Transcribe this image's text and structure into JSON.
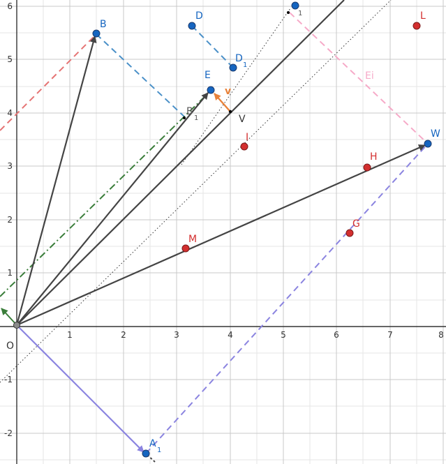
{
  "axes": {
    "x_ticks": [
      1,
      2,
      3,
      4,
      5,
      6,
      7,
      8
    ],
    "y_ticks": [
      6,
      5,
      4,
      3,
      2,
      1,
      -1,
      -2
    ],
    "origin_label": "O"
  },
  "colors": {
    "grid_major": "#c8c8c8",
    "grid_minor": "#e6e6e6",
    "axis": "#333333",
    "vector": "#444444",
    "blue_point": "#1565c0",
    "red_point": "#d32f2f",
    "label_blue": "#1565c0",
    "label_red": "#d32f2f",
    "purple": "#8b84e0",
    "pink": "#f6aac8",
    "salmon": "#e57373",
    "steelblue": "#4a90c8",
    "green": "#3a7d3a",
    "orange": "#e8823a"
  },
  "points": {
    "O": {
      "label": "O"
    },
    "B": {
      "label": "B"
    },
    "D": {
      "label": "D"
    },
    "D1": {
      "label": "D",
      "sub": "1"
    },
    "E": {
      "label": "E"
    },
    "B1": {
      "label": "B",
      "sub": "1"
    },
    "V": {
      "label": "V"
    },
    "top": {
      "label": "",
      "sub": "1"
    },
    "L": {
      "label": "L"
    },
    "I": {
      "label": "I"
    },
    "W": {
      "label": "W"
    },
    "H": {
      "label": "H"
    },
    "G": {
      "label": "G"
    },
    "M": {
      "label": "M"
    },
    "A1": {
      "label": "A",
      "sub": "1"
    }
  },
  "vector_labels": {
    "v": "v",
    "Ei": "Ei"
  }
}
